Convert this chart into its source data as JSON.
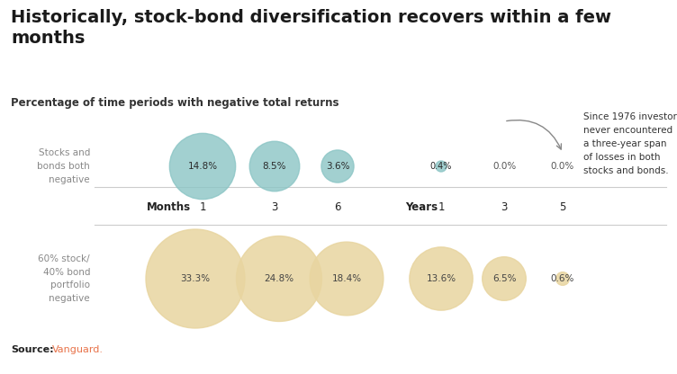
{
  "title": "Historically, stock-bond diversification recovers within a few\nmonths",
  "subtitle": "Percentage of time periods with negative total returns",
  "source_label": "Source:",
  "source_text": "Vanguard.",
  "source_color": "#e8734a",
  "bg_color": "#ffffff",
  "teal_color": "#8bc5c5",
  "tan_color": "#e8d5a0",
  "row_label_top": "Stocks and\nbonds both\nnegative",
  "row_label_bottom": "60% stock/\n40% bond\nportfolio\nnegative",
  "col_header_months": "Months",
  "col_header_years": "Years",
  "col_values_months": [
    "1",
    "3",
    "6"
  ],
  "col_values_years": [
    "1",
    "3",
    "5"
  ],
  "top_values": [
    14.8,
    8.5,
    3.6,
    0.4,
    0.0,
    0.0
  ],
  "top_labels": [
    "14.8%",
    "8.5%",
    "3.6%",
    "0.4%",
    "0.0%",
    "0.0%"
  ],
  "bottom_values": [
    33.3,
    24.8,
    18.4,
    13.6,
    6.5,
    0.6
  ],
  "bottom_labels": [
    "33.3%",
    "24.8%",
    "18.4%",
    "13.6%",
    "6.5%",
    "0.6%"
  ],
  "annotation": "Since 1976 investors\nnever encountered\na three-year span\nof losses in both\nstocks and bonds.",
  "fig_width": 7.52,
  "fig_height": 4.16,
  "dpi": 100
}
